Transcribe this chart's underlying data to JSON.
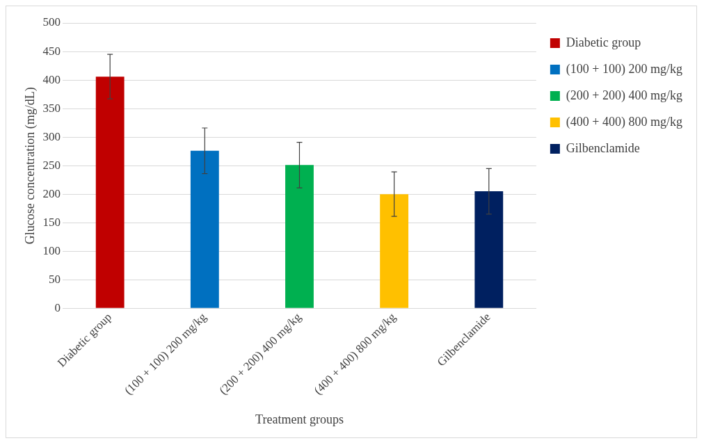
{
  "chart_data": {
    "type": "bar",
    "xlabel": "Treatment groups",
    "ylabel": "Glucose concentration (mg/dL)",
    "categories": [
      "Diabetic group",
      "(100 + 100) 200 mg/kg",
      "(200 + 200) 400 mg/kg",
      "(400 + 400) 800 mg/kg",
      "Gilbenclamide"
    ],
    "series": [
      {
        "name": "Diabetic group",
        "color": "#c00000",
        "values": [
          406,
          null,
          null,
          null,
          null
        ],
        "errors": [
          39,
          null,
          null,
          null,
          null
        ]
      },
      {
        "name": "(100 + 100) 200 mg/kg",
        "color": "#0070c0",
        "values": [
          null,
          276,
          null,
          null,
          null
        ],
        "errors": [
          null,
          40,
          null,
          null,
          null
        ]
      },
      {
        "name": "(200 + 200) 400 mg/kg",
        "color": "#00b050",
        "values": [
          null,
          null,
          251,
          null,
          null
        ],
        "errors": [
          null,
          null,
          40,
          null,
          null
        ]
      },
      {
        "name": "(400 + 400) 800 mg/kg",
        "color": "#ffc000",
        "values": [
          null,
          null,
          null,
          200,
          null
        ],
        "errors": [
          null,
          null,
          null,
          39,
          null
        ]
      },
      {
        "name": "Gilbenclamide",
        "color": "#002060",
        "values": [
          null,
          null,
          null,
          null,
          205
        ],
        "errors": [
          null,
          null,
          null,
          null,
          40
        ]
      }
    ],
    "ylim": [
      0,
      500
    ],
    "yticks": [
      0,
      50,
      100,
      150,
      200,
      250,
      300,
      350,
      400,
      450,
      500
    ],
    "grid": "y",
    "legend": "right"
  }
}
